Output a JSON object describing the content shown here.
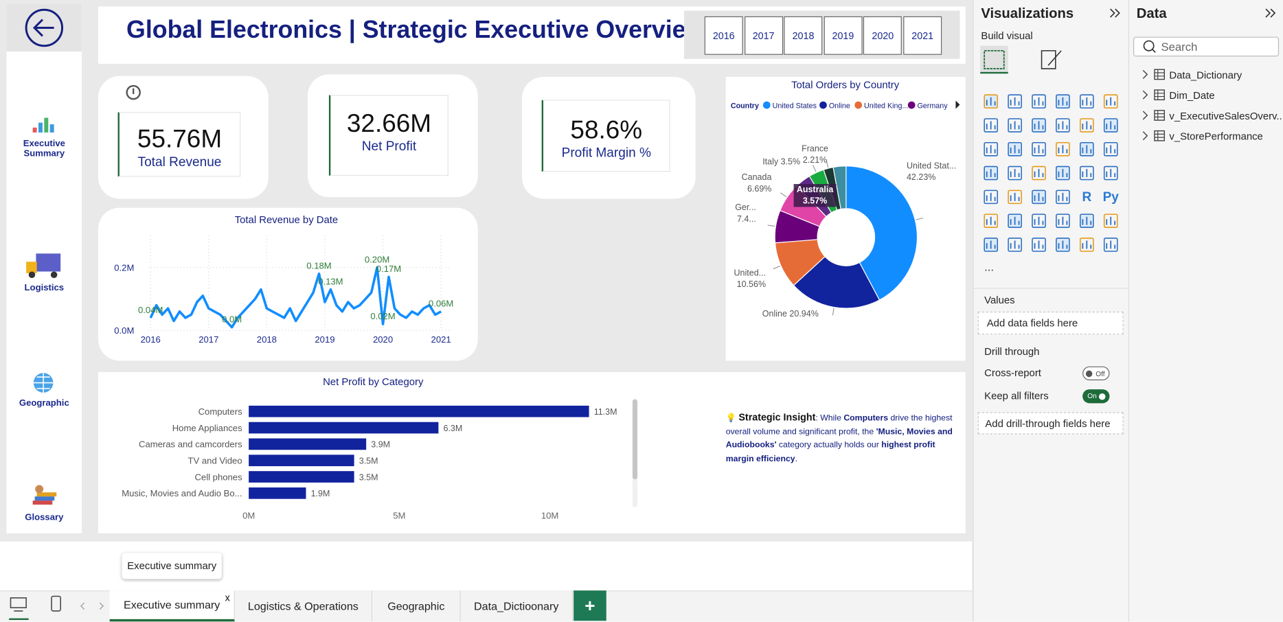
{
  "nav": {
    "items": [
      "Executive Summary",
      "Logistics",
      "Geographic",
      "Glossary"
    ]
  },
  "header": {
    "title": "Global Electronics | Strategic Executive Overview",
    "years": [
      "2016",
      "2017",
      "2018",
      "2019",
      "2020",
      "2021"
    ]
  },
  "kpis": [
    {
      "value": "55.76M",
      "label": "Total Revenue"
    },
    {
      "value": "32.66M",
      "label": "Net Profit"
    },
    {
      "value": "58.6%",
      "label": "Profit Margin %"
    }
  ],
  "chart_data": [
    {
      "type": "line",
      "title": "Total Revenue by Date",
      "color": "#118DFF",
      "x": [
        2016.0,
        2016.1,
        2016.2,
        2016.3,
        2016.4,
        2016.5,
        2016.6,
        2016.7,
        2016.8,
        2016.9,
        2017.0,
        2017.1,
        2017.2,
        2017.3,
        2017.4,
        2017.5,
        2017.6,
        2017.7,
        2017.8,
        2017.9,
        2018.0,
        2018.1,
        2018.2,
        2018.3,
        2018.4,
        2018.5,
        2018.6,
        2018.7,
        2018.8,
        2018.9,
        2019.0,
        2019.1,
        2019.2,
        2019.3,
        2019.4,
        2019.5,
        2019.6,
        2019.7,
        2019.8,
        2019.9,
        2020.0,
        2020.1,
        2020.2,
        2020.3,
        2020.4,
        2020.5,
        2020.6,
        2020.7,
        2020.8,
        2020.9,
        2021.0
      ],
      "values": [
        0.04,
        0.08,
        0.05,
        0.07,
        0.03,
        0.06,
        0.04,
        0.05,
        0.09,
        0.11,
        0.07,
        0.06,
        0.05,
        0.03,
        0.01,
        0.04,
        0.06,
        0.08,
        0.1,
        0.13,
        0.07,
        0.06,
        0.05,
        0.04,
        0.07,
        0.03,
        0.06,
        0.09,
        0.12,
        0.18,
        0.09,
        0.13,
        0.08,
        0.06,
        0.09,
        0.07,
        0.08,
        0.1,
        0.12,
        0.2,
        0.02,
        0.17,
        0.07,
        0.05,
        0.04,
        0.06,
        0.05,
        0.07,
        0.08,
        0.05,
        0.06
      ],
      "value_labels": [
        "0.04M",
        null,
        null,
        null,
        null,
        null,
        null,
        null,
        null,
        null,
        null,
        null,
        null,
        null,
        "0.0M",
        null,
        null,
        null,
        null,
        null,
        null,
        null,
        null,
        null,
        null,
        null,
        null,
        null,
        null,
        "0.18M",
        null,
        "0.13M",
        null,
        null,
        null,
        null,
        null,
        null,
        null,
        "0.20M",
        "0.02M",
        "0.17M",
        null,
        null,
        null,
        null,
        null,
        null,
        null,
        null,
        "0.06M"
      ],
      "xlim": [
        2015.95,
        2021.15
      ],
      "xticks": [
        2016,
        2017,
        2018,
        2019,
        2020,
        2021
      ],
      "ylim": [
        0,
        0.25
      ],
      "yticks": [
        {
          "value": 0,
          "label": "0.0M"
        },
        {
          "value": 0.2,
          "label": "0.2M"
        }
      ],
      "grid": true
    },
    {
      "type": "pie",
      "title": "Total Orders by Country",
      "legend": {
        "title": "Country",
        "entries": [
          "United States",
          "Online",
          "United King...",
          "Germany"
        ]
      },
      "categories": [
        "United Stat...",
        "Online",
        "United...",
        "Ger...",
        "Canada",
        "Australia",
        "Italy",
        "France",
        null
      ],
      "values": [
        42.23,
        20.94,
        10.56,
        7.4,
        6.69,
        3.57,
        3.5,
        2.21,
        2.9
      ],
      "value_labels": [
        "42.23%",
        "20.94%",
        "10.56%",
        "7.4...",
        "6.69%",
        "3.57%",
        "3.5%",
        "2.21%",
        null
      ],
      "colors": [
        "#118DFF",
        "#12239E",
        "#E66C37",
        "#6B007B",
        "#E044A7",
        "#5B2A86",
        "#1AAB40",
        "#1B3A33",
        "#3C8EA0"
      ]
    },
    {
      "type": "bar",
      "orientation": "horizontal",
      "title": "Net Profit by Category",
      "color": "#12239E",
      "categories": [
        "Computers",
        "Home Appliances",
        "Cameras and camcorders",
        "TV and Video",
        "Cell phones",
        "Music, Movies and Audio Bo..."
      ],
      "values": [
        11.3,
        6.3,
        3.9,
        3.5,
        3.5,
        1.9
      ],
      "value_labels": [
        "11.3M",
        "6.3M",
        "3.9M",
        "3.5M",
        "3.5M",
        "1.9M"
      ],
      "xlim": [
        0,
        12
      ],
      "xticks": [
        {
          "value": 0,
          "label": "0M"
        },
        {
          "value": 5,
          "label": "5M"
        },
        {
          "value": 10,
          "label": "10M"
        }
      ]
    }
  ],
  "insight": {
    "parts": [
      {
        "text": "💡 ",
        "bold": false
      },
      {
        "text": "Strategic Insight",
        "bold": true
      },
      {
        "text": ": While ",
        "bold": false
      },
      {
        "text": "Computers",
        "bold": true
      },
      {
        "text": " drive the highest overall volume and significant profit, the ",
        "bold": false
      },
      {
        "text": "'Music, Movies and Audiobooks'",
        "bold": true
      },
      {
        "text": " category actually holds our ",
        "bold": false
      },
      {
        "text": "highest profit margin efficiency",
        "bold": true
      },
      {
        "text": ".",
        "bold": false
      }
    ]
  },
  "visualizations_pane": {
    "title": "Visualizations",
    "build_visual": "Build visual",
    "icon_texts": [
      "R",
      "Py"
    ],
    "more": "...",
    "values_label": "Values",
    "values_placeholder": "Add data fields here",
    "drill_through": "Drill through",
    "cross_report": "Cross-report",
    "cross_report_state": "Off",
    "keep_filters": "Keep all filters",
    "keep_filters_state": "On",
    "drill_placeholder": "Add drill-through fields here"
  },
  "data_pane": {
    "title": "Data",
    "search": "Search",
    "tables": [
      "Data_Dictionary",
      "Dim_Date",
      "v_ExecutiveSalesOverv...",
      "v_StorePerformance"
    ]
  },
  "tabs": {
    "items": [
      {
        "label": "Executive summary",
        "active": true
      },
      {
        "label": "Logistics & Operations",
        "active": false
      },
      {
        "label": "Geographic",
        "active": false
      },
      {
        "label": "Data_Dictioonary",
        "active": false
      }
    ],
    "close": "x",
    "add": "+",
    "tooltip": "Executive summary"
  }
}
